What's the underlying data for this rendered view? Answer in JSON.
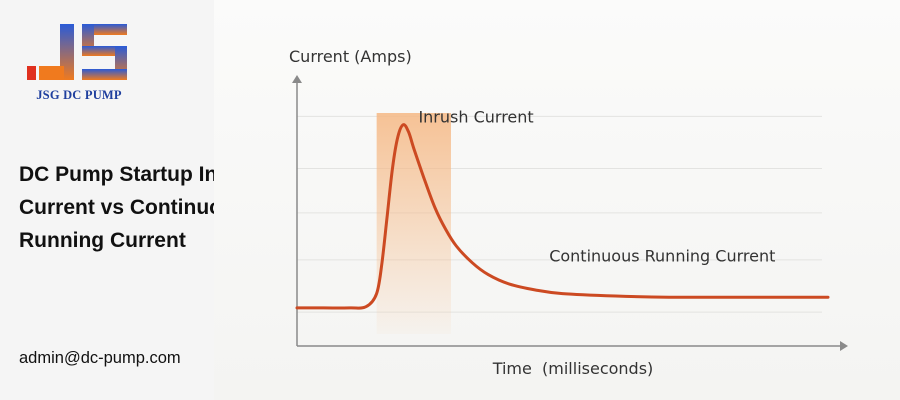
{
  "brand": {
    "name": "JSG DC PUMP",
    "logo_mark": "JS",
    "colors": {
      "blue": "#2a5bd7",
      "navy": "#1f3f9e",
      "orange": "#f07a1e",
      "red": "#e0301e"
    }
  },
  "headline": "DC Pump Startup Inrush Current vs Continuous Running Current",
  "contact": {
    "email": "admin@dc-pump.com"
  },
  "chart_data": {
    "type": "line",
    "ylabel": "Current (Amps)",
    "xlabel": "Time  (milliseconds)",
    "grid": true,
    "axis_tick_labels": false,
    "series_color": "#cc4a22",
    "highlight_color": "#f7c99a",
    "xlim": [
      0,
      100
    ],
    "ylim": [
      0,
      100
    ],
    "series": [
      {
        "points": [
          [
            0,
            16
          ],
          [
            5,
            16
          ],
          [
            10,
            16
          ],
          [
            13,
            16.5
          ],
          [
            15,
            22
          ],
          [
            16,
            35
          ],
          [
            17,
            55
          ],
          [
            18,
            75
          ],
          [
            19,
            88
          ],
          [
            20,
            93
          ],
          [
            21,
            90
          ],
          [
            22,
            83
          ],
          [
            24,
            70
          ],
          [
            26,
            58
          ],
          [
            28,
            49
          ],
          [
            30,
            42
          ],
          [
            33,
            35
          ],
          [
            36,
            30
          ],
          [
            40,
            26
          ],
          [
            45,
            23.5
          ],
          [
            50,
            22
          ],
          [
            60,
            21
          ],
          [
            70,
            20.5
          ],
          [
            80,
            20.5
          ],
          [
            90,
            20.5
          ],
          [
            100,
            20.5
          ]
        ]
      }
    ],
    "highlight_band": {
      "x_start": 15,
      "x_end": 29
    },
    "annotations": [
      {
        "id": "inrush",
        "text": "Inrush Current",
        "x": 24,
        "y": 96
      },
      {
        "id": "continuous",
        "text": "Continuous Running Current",
        "x": 49,
        "y": 28
      }
    ]
  }
}
